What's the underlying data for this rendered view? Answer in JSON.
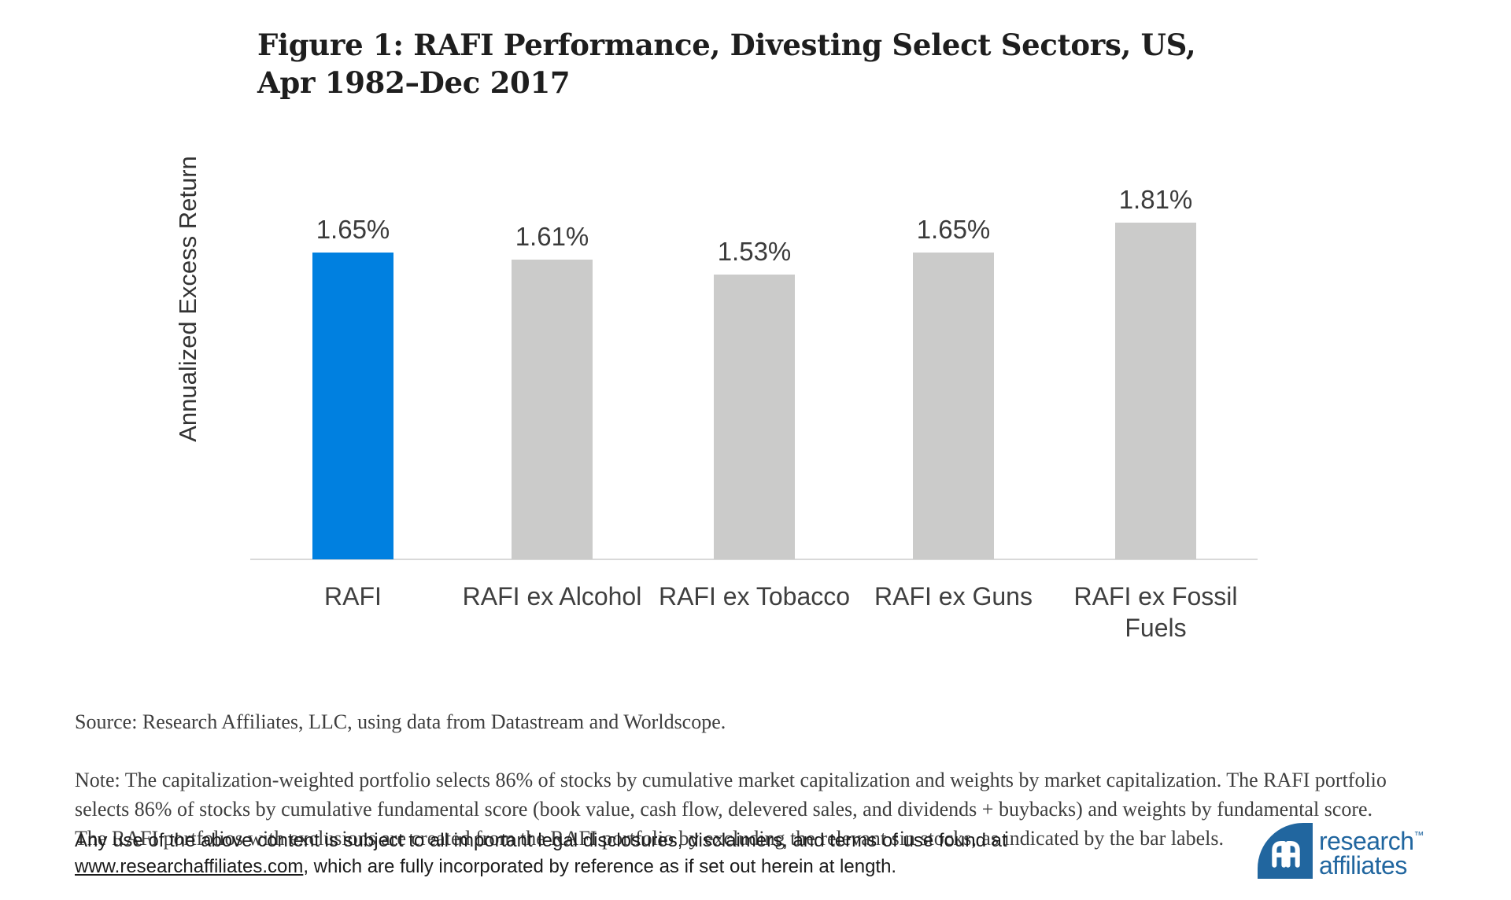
{
  "figure": {
    "title": "Figure 1: RAFI Performance, Divesting Select Sectors, US,\nApr 1982–Dec 2017"
  },
  "chart_data": {
    "type": "bar",
    "title": "Figure 1: RAFI Performance, Divesting Select Sectors, US, Apr 1982–Dec 2017",
    "ylabel": "Annualized Excess Return",
    "xlabel": "",
    "categories": [
      "RAFI",
      "RAFI ex Alcohol",
      "RAFI ex Tobacco",
      "RAFI ex Guns",
      "RAFI ex Fossil Fuels"
    ],
    "values": [
      1.65,
      1.61,
      1.53,
      1.65,
      1.81
    ],
    "value_labels": [
      "1.65%",
      "1.61%",
      "1.53%",
      "1.65%",
      "1.81%"
    ],
    "bar_colors": [
      "#0080E0",
      "#CBCBCA",
      "#CBCBCA",
      "#CBCBCA",
      "#CBCBCA"
    ],
    "highlight_color": "#0080E0",
    "default_bar_color": "#CBCBCA",
    "axis_line_color": "#D9D9D9",
    "ylim": [
      0,
      2.33
    ],
    "grid": false,
    "legend": null,
    "y_tick_labels_shown": false
  },
  "footnotes": {
    "source": "Source: Research Affiliates, LLC, using data from Datastream and Worldscope.",
    "note": "Note: The capitalization-weighted portfolio selects 86% of stocks by cumulative market capitalization and weights by market capitalization. The RAFI portfolio\nselects 86% of stocks by cumulative fundamental score (book value, cash flow, delevered sales, and dividends + buybacks) and weights by fundamental score.\nThe RAFI portfolios with exclusions are created from the RAFI portfolio by excluding the relevant sin stocks, as indicated by the bar labels."
  },
  "legal": {
    "line1": "Any use of the above content is subject to all important legal disclosures, disclaimers, and terms of use found at",
    "link": "www.researchaffiliates.com",
    "line2_rest": ", which are fully incorporated by reference as if set out herein at length."
  },
  "logo": {
    "word1": "research",
    "word2": "affiliates",
    "tm": "™",
    "brand_color": "#21669F",
    "mark_icon": "ra-monogram-icon"
  }
}
